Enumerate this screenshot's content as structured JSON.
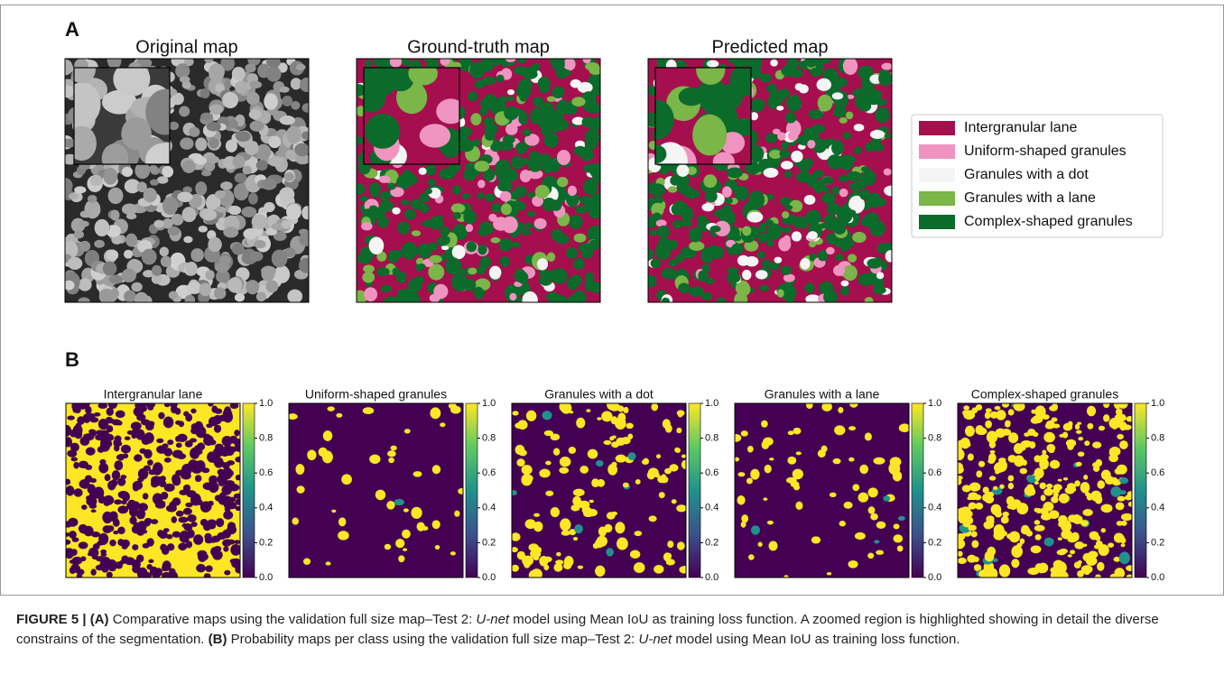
{
  "panel_a": {
    "label": "A",
    "maps": [
      {
        "title": "Original map"
      },
      {
        "title": "Ground-truth map"
      },
      {
        "title": "Predicted map"
      }
    ],
    "legend": [
      {
        "label": "Intergranular lane",
        "color": "#a50f4e"
      },
      {
        "label": "Uniform-shaped granules",
        "color": "#ef94c0"
      },
      {
        "label": "Granules with a dot",
        "color": "#f5f5f5"
      },
      {
        "label": "Granules with a lane",
        "color": "#7ab648"
      },
      {
        "label": "Complex-shaped granules",
        "color": "#0b6b2b"
      }
    ]
  },
  "panel_b": {
    "label": "B",
    "maps": [
      {
        "title": "Intergranular lane"
      },
      {
        "title": "Uniform-shaped granules"
      },
      {
        "title": "Granules with a dot"
      },
      {
        "title": "Granules with a lane"
      },
      {
        "title": "Complex-shaped granules"
      }
    ],
    "colorbar_ticks": [
      {
        "value": 0,
        "label": "0.0"
      },
      {
        "value": 0.2,
        "label": "0.2"
      },
      {
        "value": 0.4,
        "label": "0.4"
      },
      {
        "value": 0.6,
        "label": "0.6"
      },
      {
        "value": 0.8,
        "label": "0.8"
      },
      {
        "value": 1,
        "label": "1.0"
      }
    ]
  },
  "caption": [
    "FIGURE 5 | (A)",
    " Comparative maps using the validation full size map–Test 2: ",
    "U-net",
    " model using Mean IoU as training loss function. A zoomed region is highlighted showing in detail the diverse constrains of the segmentation. ",
    "(B)",
    " Probability maps per class using the validation full size map–Test 2: ",
    "U-net",
    " model using Mean IoU as training loss function."
  ]
}
